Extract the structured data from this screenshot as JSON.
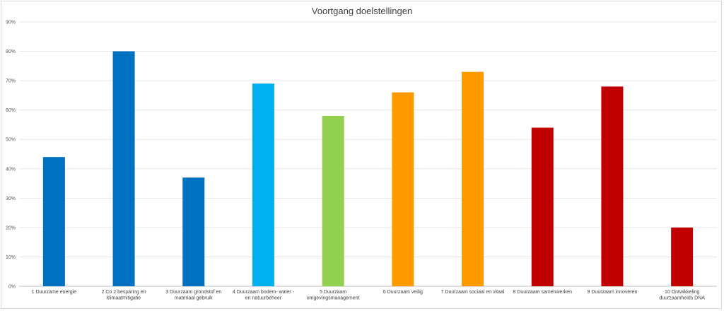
{
  "chart_data": {
    "type": "bar",
    "title": "Voortgang doelstellingen",
    "xlabel": "",
    "ylabel": "",
    "ylim": [
      0,
      90
    ],
    "y_ticks": [
      "0%",
      "10%",
      "20%",
      "30%",
      "40%",
      "50%",
      "60%",
      "70%",
      "80%",
      "90%"
    ],
    "grid": true,
    "legend": "none",
    "categories": [
      [
        "1 Duurzame energie"
      ],
      [
        "2 Co 2 besparing en",
        "klimaatmitigatie"
      ],
      [
        "3 Duurzaam grondstof en",
        "materiaal gebruik"
      ],
      [
        "4 Duurzaam bodem-  water -",
        "en natuurbeheer"
      ],
      [
        "5 Duurzaam",
        "omgevingsmanagement"
      ],
      [
        "6 Duurzaam veilig"
      ],
      [
        "7 Duurzaam sociaal en vitaal"
      ],
      [
        "8 Duurzaam samenwerken"
      ],
      [
        "9 Duurzaam innoveren"
      ],
      [
        "10 Ontwikkeling",
        "duurzaamheids DNA"
      ]
    ],
    "values": [
      44,
      80,
      37,
      69,
      58,
      66,
      73,
      54,
      68,
      20
    ],
    "colors": [
      "#0070c0",
      "#0070c0",
      "#0070c0",
      "#00b0f0",
      "#92d050",
      "#ff9900",
      "#ff9900",
      "#c00000",
      "#c00000",
      "#c00000"
    ]
  }
}
